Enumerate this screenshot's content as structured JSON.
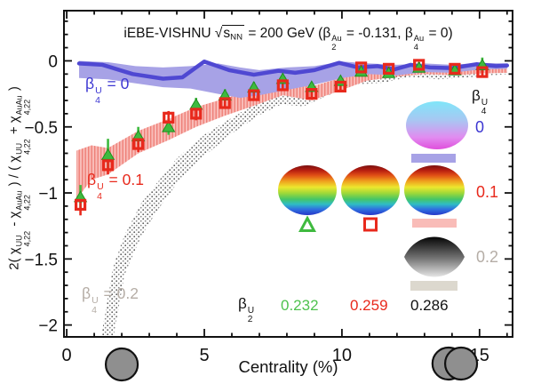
{
  "colors": {
    "blue_line": "#4f48d2",
    "blue_band": "#a7a2e6",
    "blue_text": "#3d37d2",
    "red": "#e8291c",
    "pink_band": "#f9bcb8",
    "pink_hatch": "#ee8078",
    "green": "#3fba3f",
    "green_dark": "#1d8f1d",
    "green_text": "#4fc24f",
    "gray_text": "#b5ada6",
    "gray_swatch": "#dcd8ce",
    "circle_fill": "#8f8f8f",
    "frame": "#111111"
  },
  "title": {
    "segments": [
      {
        "t": "iEBE-VISHNU "
      },
      {
        "t": "√"
      },
      {
        "sqrt": [
          {
            "t": "s"
          },
          {
            "sub": "NN"
          }
        ]
      },
      {
        "t": " = 200 GeV (β"
      },
      {
        "ss": [
          "Au",
          "2"
        ]
      },
      {
        "t": " = -0.131, β"
      },
      {
        "ss": [
          "Au",
          "4"
        ]
      },
      {
        "t": " = 0)"
      }
    ]
  },
  "axis": {
    "x_label": "Centrality (%)",
    "y_label_segments": [
      {
        "t": "2( χ"
      },
      {
        "ss": [
          "UU",
          "4,22"
        ]
      },
      {
        "t": " - χ"
      },
      {
        "ss": [
          "AuAu",
          "4,22"
        ]
      },
      {
        "t": " ) / ( χ"
      },
      {
        "ss": [
          "UU",
          "4,22"
        ]
      },
      {
        "t": " + χ"
      },
      {
        "ss": [
          "AuAu",
          "4,22"
        ]
      },
      {
        "t": " )"
      }
    ]
  },
  "band_labels": {
    "b0": {
      "segments": [
        {
          "t": "β"
        },
        {
          "ss": [
            "U",
            "4"
          ]
        },
        {
          "t": " = 0"
        }
      ]
    },
    "b01": {
      "segments": [
        {
          "t": "β"
        },
        {
          "ss": [
            "U",
            "4"
          ]
        },
        {
          "t": " = 0.1"
        }
      ]
    },
    "b02": {
      "segments": [
        {
          "t": "β"
        },
        {
          "ss": [
            "U",
            "4"
          ]
        },
        {
          "t": " = 0.2"
        }
      ]
    }
  },
  "legend": {
    "b4_header_segments": [
      {
        "t": "β"
      },
      {
        "ss": [
          "U",
          "4"
        ]
      }
    ],
    "values": {
      "v0": "0",
      "v01": "0.1",
      "v02": "0.2"
    },
    "shapes": [
      "oblate-ellipsoid-cyan-magenta",
      "prolate-ellipsoid-rainbow",
      "prolate-ellipsoid-rainbow",
      "prolate-ellipsoid-rainbow",
      "lemon-ellipsoid-black"
    ],
    "marker_icons": [
      "green-open-triangle",
      "red-open-square"
    ],
    "b2_header_segments": [
      {
        "t": "β"
      },
      {
        "ss": [
          "U",
          "2"
        ]
      }
    ],
    "b2_values": [
      {
        "text": "0.232"
      },
      {
        "text": "0.259"
      },
      {
        "text": "0.286"
      }
    ]
  },
  "chart_data": {
    "type": "line",
    "title": "iEBE-VISHNU sqrt(s_NN) = 200 GeV (beta2^Au = -0.131, beta4^Au = 0)",
    "xlabel": "Centrality (%)",
    "ylabel": "2(chi_4,22^UU - chi_4,22^AuAu) / (chi_4,22^UU + chi_4,22^AuAu)",
    "xlim": [
      -0.1,
      16.2
    ],
    "ylim": [
      -2.09,
      0.38
    ],
    "x_major_ticks": [
      0,
      5,
      10,
      15
    ],
    "x_major_tick_labels": [
      "0",
      "5",
      "10",
      "15"
    ],
    "x_minor_step": 1,
    "y_major_ticks": [
      0,
      -0.5,
      -1,
      -1.5,
      -2
    ],
    "y_major_tick_labels": [
      "0",
      "−0.5",
      "−1",
      "−1.5",
      "−2"
    ],
    "y_minor_step": 0.1,
    "blue_line": {
      "name": "beta4U = 0 band center",
      "x": [
        0.45,
        1.3,
        2.4,
        3.5,
        4.2,
        5.0,
        5.9,
        6.8,
        7.7,
        8.3,
        9.0,
        9.9,
        10.6,
        11.3,
        11.9,
        12.5,
        13.2,
        14.0,
        14.9,
        15.6,
        16.0
      ],
      "y": [
        -0.02,
        -0.03,
        -0.1,
        -0.135,
        -0.125,
        -0.005,
        -0.07,
        -0.105,
        -0.075,
        -0.09,
        -0.07,
        -0.015,
        -0.05,
        -0.04,
        -0.065,
        -0.03,
        -0.05,
        -0.055,
        -0.025,
        -0.04,
        -0.035
      ]
    },
    "blue_band": {
      "name": "beta4U = 0 uncertainty band",
      "x": [
        0.45,
        1.5,
        2.5,
        3.5,
        4.5,
        5.5,
        6.3,
        7.0,
        8.0,
        9.0,
        10.0,
        11.0,
        12.0,
        13.0,
        14.0,
        15.0,
        16.0
      ],
      "upper": [
        0.0,
        -0.01,
        -0.04,
        -0.05,
        -0.04,
        -0.02,
        -0.05,
        -0.07,
        -0.05,
        -0.04,
        -0.005,
        -0.02,
        -0.03,
        -0.02,
        -0.03,
        -0.015,
        -0.02
      ],
      "lower": [
        -0.13,
        -0.14,
        -0.17,
        -0.2,
        -0.21,
        -0.25,
        -0.28,
        -0.26,
        -0.22,
        -0.18,
        -0.13,
        -0.1,
        -0.11,
        -0.085,
        -0.09,
        -0.065,
        -0.06
      ]
    },
    "pink_band": {
      "name": "beta4U = 0.1 band",
      "x": [
        0.35,
        0.9,
        1.5,
        2.6,
        3.7,
        4.7,
        5.75,
        6.8,
        7.85,
        8.9,
        9.95,
        10.9,
        12.0,
        13.0,
        14.1,
        15.1,
        16.0
      ],
      "upper": [
        -0.68,
        -0.64,
        -0.66,
        -0.53,
        -0.44,
        -0.35,
        -0.285,
        -0.215,
        -0.145,
        -0.195,
        -0.13,
        -0.065,
        -0.05,
        -0.035,
        -0.045,
        -0.03,
        -0.03
      ],
      "lower": [
        -1.05,
        -0.9,
        -0.86,
        -0.7,
        -0.6,
        -0.5,
        -0.415,
        -0.34,
        -0.26,
        -0.3,
        -0.225,
        -0.15,
        -0.12,
        -0.1,
        -0.11,
        -0.095,
        -0.09
      ]
    },
    "gray_band": {
      "name": "beta4U = 0.2 band",
      "x": [
        1.25,
        1.7,
        2.1,
        2.7,
        3.3,
        4.0,
        5.0,
        6.0,
        7.0,
        7.8,
        8.6,
        9.5,
        10.5,
        11.5,
        12.5,
        13.5,
        14.5,
        15.5,
        16.0
      ],
      "upper": [
        -2.09,
        -1.55,
        -1.32,
        -1.08,
        -0.92,
        -0.74,
        -0.56,
        -0.43,
        -0.31,
        -0.24,
        -0.265,
        -0.18,
        -0.105,
        -0.1,
        -0.06,
        -0.08,
        -0.07,
        -0.055,
        -0.05
      ],
      "lower": [
        -2.09,
        -2.09,
        -1.62,
        -1.33,
        -1.13,
        -0.93,
        -0.72,
        -0.55,
        -0.41,
        -0.33,
        -0.345,
        -0.26,
        -0.18,
        -0.165,
        -0.12,
        -0.14,
        -0.125,
        -0.11,
        -0.1
      ]
    },
    "green_triangles": {
      "name": "beta2U = 0.232",
      "x": [
        0.5,
        1.5,
        2.6,
        3.7,
        4.7,
        5.75,
        6.8,
        7.85,
        8.9,
        9.95,
        10.7,
        11.7,
        12.8,
        14.1,
        15.1
      ],
      "y": [
        -1.03,
        -0.71,
        -0.57,
        -0.5,
        -0.33,
        -0.26,
        -0.2,
        -0.135,
        -0.195,
        -0.15,
        -0.08,
        -0.09,
        -0.05,
        -0.07,
        -0.03
      ],
      "yerr": [
        0.09,
        0.12,
        0.07,
        0.06,
        0.05,
        0.045,
        0.04,
        0.035,
        0.03,
        0.03,
        0.03,
        0.025,
        0.02,
        0.02,
        0.055
      ]
    },
    "red_squares": {
      "name": "beta2U = 0.259",
      "x": [
        0.5,
        1.5,
        2.6,
        3.7,
        4.7,
        5.75,
        6.8,
        7.85,
        8.9,
        9.95,
        10.7,
        11.7,
        12.8,
        14.1,
        15.1
      ],
      "y": [
        -1.09,
        -0.79,
        -0.63,
        -0.43,
        -0.4,
        -0.32,
        -0.26,
        -0.185,
        -0.25,
        -0.195,
        -0.05,
        -0.06,
        -0.03,
        -0.06,
        -0.085
      ],
      "yerr": [
        0.08,
        0.07,
        0.06,
        0.05,
        0.05,
        0.04,
        0.04,
        0.03,
        0.03,
        0.03,
        0.02,
        0.02,
        0.02,
        0.02,
        0.04
      ]
    },
    "collision_markers": {
      "single_c": 2.0,
      "pair_c": [
        13.87,
        14.33
      ],
      "cy": 410,
      "r": 18
    }
  }
}
